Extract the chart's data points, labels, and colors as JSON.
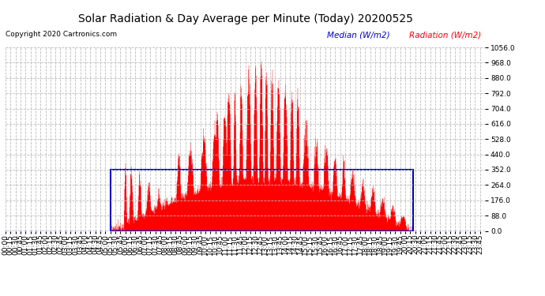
{
  "title": "Solar Radiation & Day Average per Minute (Today) 20200525",
  "copyright": "Copyright 2020 Cartronics.com",
  "legend_median_label": "Median (W/m2)",
  "legend_radiation_label": "Radiation (W/m2)",
  "ymax": 1056.0,
  "yticks": [
    0.0,
    88.0,
    176.0,
    264.0,
    352.0,
    440.0,
    528.0,
    616.0,
    704.0,
    792.0,
    880.0,
    968.0,
    1056.0
  ],
  "bar_color": "#ff0000",
  "median_color": "#0000cc",
  "background_color": "#ffffff",
  "grid_color": "#bbbbbb",
  "title_fontsize": 10,
  "tick_fontsize": 6.5,
  "copyright_fontsize": 6.5,
  "legend_fontsize": 7.5,
  "median_value": 352.0,
  "sunrise_minute": 315,
  "sunset_minute": 1225,
  "total_minutes": 1440,
  "x_tick_interval": 15
}
